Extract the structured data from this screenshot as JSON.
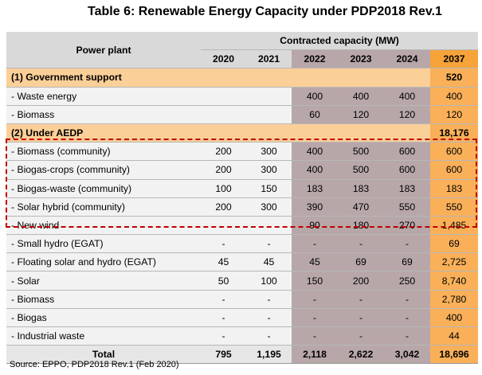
{
  "title": "Table 6:  Renewable Energy Capacity under PDP2018 Rev.1",
  "header": {
    "power_plant": "Power plant",
    "contracted": "Contracted capacity (MW)",
    "years": [
      "2020",
      "2021",
      "2022",
      "2023",
      "2024",
      "2037"
    ]
  },
  "rows": [
    {
      "type": "group",
      "label": "(1) Government support",
      "v": [
        "",
        "",
        "",
        "",
        "",
        "520"
      ]
    },
    {
      "type": "item",
      "label": "- Waste energy",
      "v": [
        "",
        "",
        "400",
        "400",
        "400",
        "400"
      ]
    },
    {
      "type": "item",
      "label": "- Biomass",
      "v": [
        "",
        "",
        "60",
        "120",
        "120",
        "120"
      ]
    },
    {
      "type": "group",
      "label": "(2) Under AEDP",
      "v": [
        "",
        "",
        "",
        "",
        "",
        "18,176"
      ]
    },
    {
      "type": "item",
      "label": "- Biomass (community)",
      "v": [
        "200",
        "300",
        "400",
        "500",
        "600",
        "600"
      ]
    },
    {
      "type": "item",
      "label": "- Biogas-crops (community)",
      "v": [
        "200",
        "300",
        "400",
        "500",
        "600",
        "600"
      ]
    },
    {
      "type": "item",
      "label": "- Biogas-waste (community)",
      "v": [
        "100",
        "150",
        "183",
        "183",
        "183",
        "183"
      ]
    },
    {
      "type": "item",
      "label": "- Solar hybrid (community)",
      "v": [
        "200",
        "300",
        "390",
        "470",
        "550",
        "550"
      ]
    },
    {
      "type": "item",
      "label": "- New wind",
      "v": [
        "",
        "",
        "90",
        "180",
        "270",
        "1,485"
      ]
    },
    {
      "type": "item",
      "label": "- Small hydro (EGAT)",
      "v": [
        "-",
        "-",
        "-",
        "-",
        "-",
        "69"
      ]
    },
    {
      "type": "item",
      "label": "- Floating solar and hydro (EGAT)",
      "v": [
        "45",
        "45",
        "45",
        "69",
        "69",
        "2,725"
      ]
    },
    {
      "type": "item",
      "label": "- Solar",
      "v": [
        "50",
        "100",
        "150",
        "200",
        "250",
        "8,740"
      ]
    },
    {
      "type": "item",
      "label": "- Biomass",
      "v": [
        "-",
        "-",
        "-",
        "-",
        "-",
        "2,780"
      ]
    },
    {
      "type": "item",
      "label": "- Biogas",
      "v": [
        "-",
        "-",
        "-",
        "-",
        "-",
        "400"
      ]
    },
    {
      "type": "item",
      "label": "- Industrial waste",
      "v": [
        "-",
        "-",
        "-",
        "-",
        "-",
        "44"
      ]
    },
    {
      "type": "total",
      "label": "Total",
      "v": [
        "795",
        "1,195",
        "2,118",
        "2,622",
        "3,042",
        "18,696"
      ]
    }
  ],
  "source": "Source: EPPO, PDP2018 Rev.1 (Feb 2020)"
}
